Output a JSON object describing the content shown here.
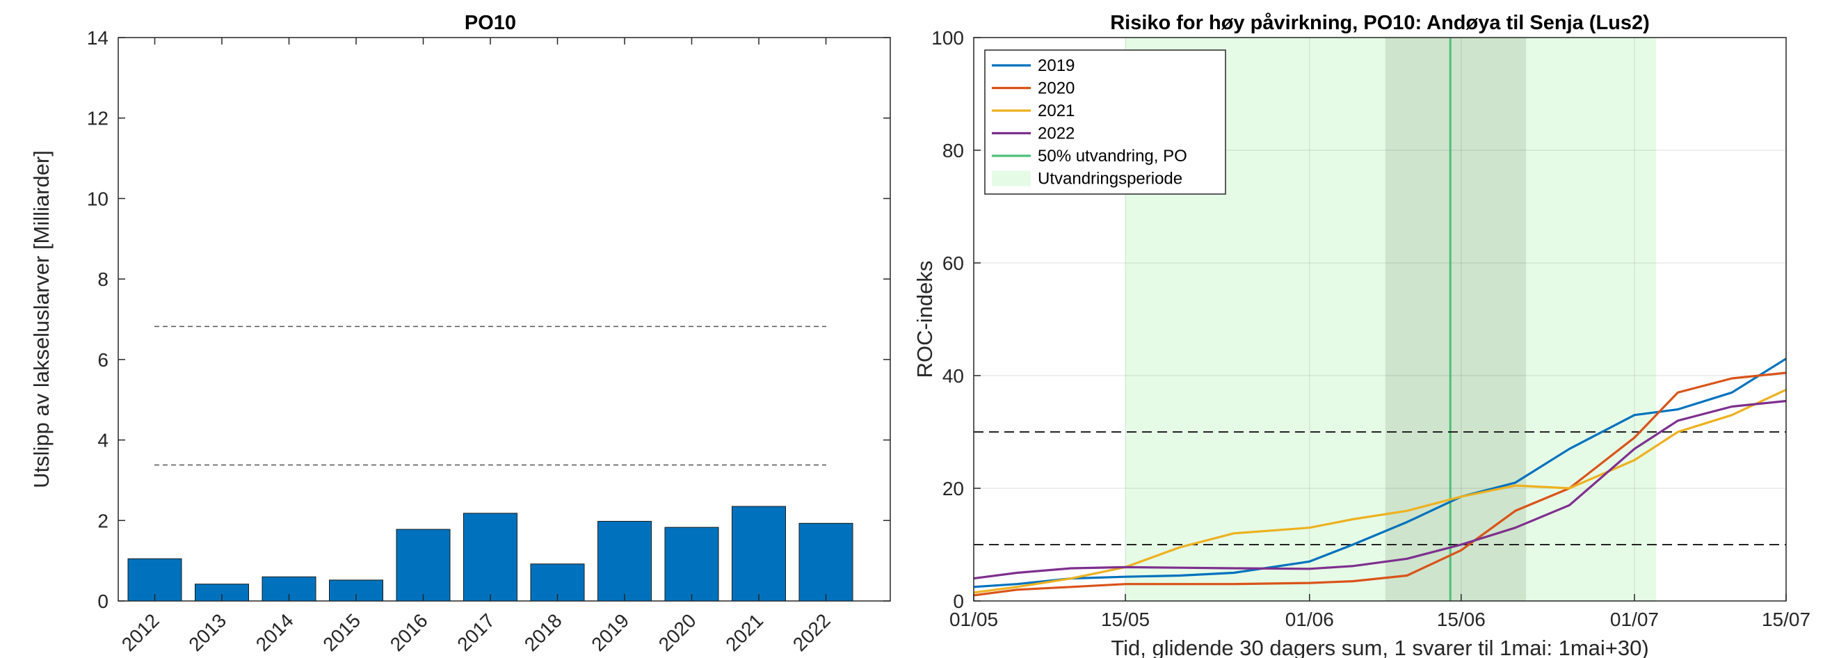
{
  "chart_data": [
    {
      "type": "bar",
      "title": "PO10",
      "xlabel": "",
      "ylabel": "Utslipp av lakseluslarver [Milliarder]",
      "categories": [
        "2012",
        "2013",
        "2014",
        "2015",
        "2016",
        "2017",
        "2018",
        "2019",
        "2020",
        "2021",
        "2022"
      ],
      "values": [
        1.05,
        0.42,
        0.6,
        0.52,
        1.78,
        2.18,
        0.92,
        1.98,
        1.83,
        2.35,
        1.93
      ],
      "ylim": [
        0,
        14
      ],
      "yticks": [
        "0",
        "2",
        "4",
        "6",
        "8",
        "10",
        "12",
        "14"
      ],
      "thresholds": [
        3.38,
        6.82
      ],
      "bar_color": "#0072bd",
      "grid": false
    },
    {
      "type": "line",
      "title": "Risiko for høy påvirkning, PO10: Andøya til Senja (Lus2)",
      "xlabel": "Tid, glidende 30 dagers sum, 1 svarer til 1mai: 1mai+30)",
      "ylabel": "ROC-indeks",
      "xlim": [
        "01/05",
        "15/07"
      ],
      "ylim": [
        0,
        100
      ],
      "xticks": [
        "01/05",
        "15/05",
        "01/06",
        "15/06",
        "01/07",
        "15/07"
      ],
      "yticks": [
        "0",
        "20",
        "40",
        "60",
        "80",
        "100"
      ],
      "x_dates": [
        "01/05",
        "05/05",
        "10/05",
        "15/05",
        "20/05",
        "25/05",
        "01/06",
        "05/06",
        "10/06",
        "15/06",
        "20/06",
        "25/06",
        "01/07",
        "05/07",
        "10/07",
        "15/07"
      ],
      "series": [
        {
          "name": "2019",
          "color": "#0072bd",
          "values": [
            2.5,
            3,
            4,
            4.3,
            4.5,
            5,
            7,
            10,
            14,
            18.5,
            21,
            27,
            33,
            34,
            37,
            43
          ]
        },
        {
          "name": "2020",
          "color": "#d95319",
          "values": [
            1,
            2,
            2.5,
            3,
            3,
            3,
            3.2,
            3.5,
            4.5,
            9,
            16,
            20,
            29,
            37,
            39.5,
            40.5
          ]
        },
        {
          "name": "2021",
          "color": "#edb120",
          "values": [
            1.5,
            2.5,
            4,
            6,
            9.5,
            12,
            13,
            14.5,
            16,
            18.5,
            20.5,
            20,
            25,
            30,
            33,
            37.5
          ]
        },
        {
          "name": "2022",
          "color": "#7e2f8e",
          "values": [
            4,
            5,
            5.8,
            6,
            5.9,
            5.8,
            5.7,
            6.2,
            7.5,
            10,
            13,
            17,
            27,
            32,
            34.5,
            35.5
          ]
        }
      ],
      "thresholds": [
        10,
        30
      ],
      "migration_50_label": "50% utvandring, PO",
      "migration_50_date": "14/06",
      "migration_50_color": "#4dbf7a",
      "migration_period_label": "Utvandringsperiode",
      "migration_period": [
        "15/05",
        "03/07"
      ],
      "migration_core": [
        "08/06",
        "21/06"
      ],
      "period_color": "#e6fbe6",
      "core_color": "#cfe4cc",
      "legend_position": "top-left",
      "grid": true
    }
  ]
}
